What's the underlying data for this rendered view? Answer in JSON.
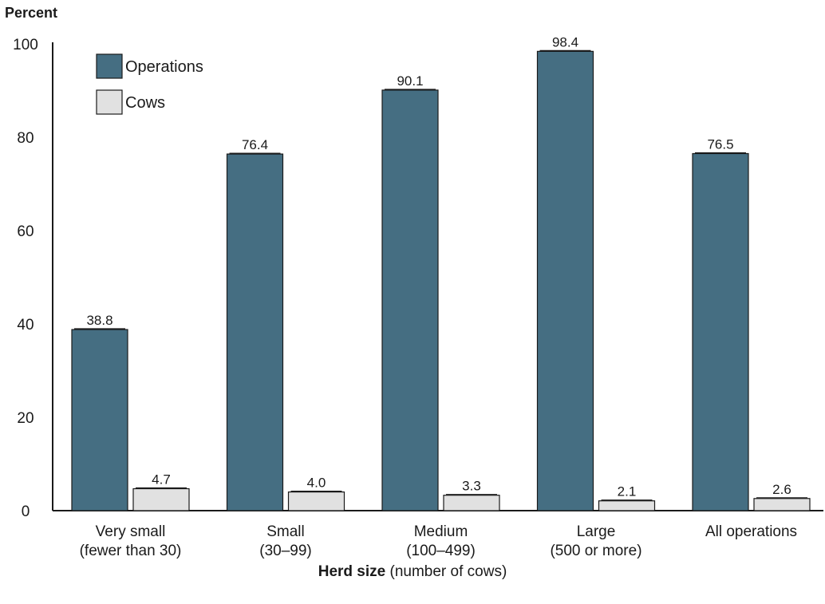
{
  "chart_data": {
    "type": "bar",
    "ylabel": "Percent",
    "xlabel_bold": "Herd size",
    "xlabel_rest": " (number of cows)",
    "ylim": [
      0,
      100
    ],
    "yticks": [
      0,
      20,
      40,
      60,
      80,
      100
    ],
    "categories": [
      [
        "Very small",
        "(fewer than 30)"
      ],
      [
        "Small",
        "(30–99)"
      ],
      [
        "Medium",
        "(100–499)"
      ],
      [
        "Large",
        "(500 or more)"
      ],
      [
        "All operations"
      ]
    ],
    "series": [
      {
        "name": "Operations",
        "color": "#456e82",
        "values": [
          38.8,
          76.4,
          90.1,
          98.4,
          76.5
        ],
        "labels": [
          "38.8",
          "76.4",
          "90.1",
          "98.4",
          "76.5"
        ]
      },
      {
        "name": "Cows",
        "color": "#e1e1e1",
        "values": [
          4.7,
          4.0,
          3.3,
          2.1,
          2.6
        ],
        "labels": [
          "4.7",
          "4.0",
          "3.3",
          "2.1",
          "2.6"
        ]
      }
    ],
    "legend_position": "top-left",
    "grid": false
  }
}
